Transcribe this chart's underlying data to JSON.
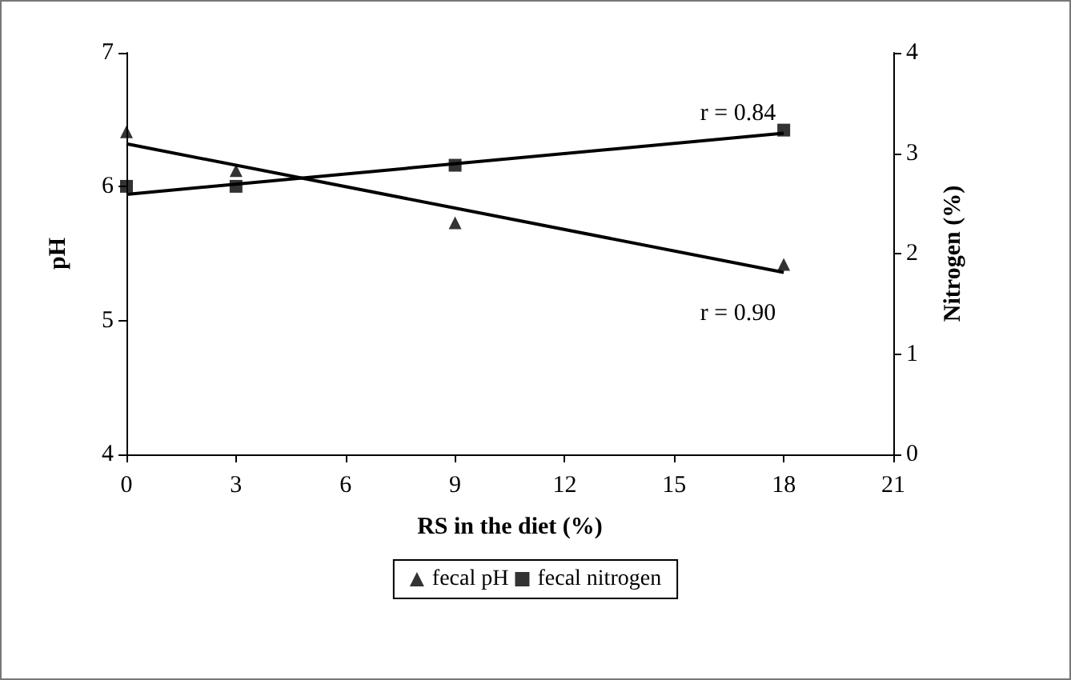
{
  "chart_data": {
    "type": "scatter",
    "xlabel": "RS in the diet (%)",
    "ylabel": "pH",
    "y2label": "Nitrogen (%)",
    "series": [
      {
        "name": "fecal pH",
        "marker": "triangle",
        "color": "#000000",
        "x": [
          0,
          3,
          9,
          18
        ],
        "values": [
          6.41,
          6.12,
          5.73,
          5.42
        ]
      },
      {
        "name": "fecal nitrogen",
        "marker": "square",
        "axis": "y2",
        "color": "#000000",
        "x": [
          0,
          3,
          9,
          18
        ],
        "values": [
          2.67,
          2.67,
          2.88,
          3.23
        ]
      },
      {
        "type": "line",
        "color": "#000000",
        "x": [
          0,
          18
        ],
        "values": [
          6.32,
          5.36
        ]
      },
      {
        "type": "line",
        "axis": "y2",
        "color": "#000000",
        "x": [
          0,
          18
        ],
        "values": [
          2.59,
          3.2
        ]
      }
    ],
    "xlim": [
      0,
      21
    ],
    "xticks": [
      0,
      3,
      6,
      9,
      12,
      15,
      18,
      21
    ],
    "ylim": [
      4,
      7
    ],
    "yticks": [
      4,
      5,
      6,
      7
    ],
    "y2lim": [
      0,
      4
    ],
    "y2ticks": [
      0,
      1,
      2,
      3,
      4
    ],
    "annotations": [
      "r = 0.84",
      "r = 0.90"
    ],
    "legend": "bottom",
    "grid": false
  }
}
